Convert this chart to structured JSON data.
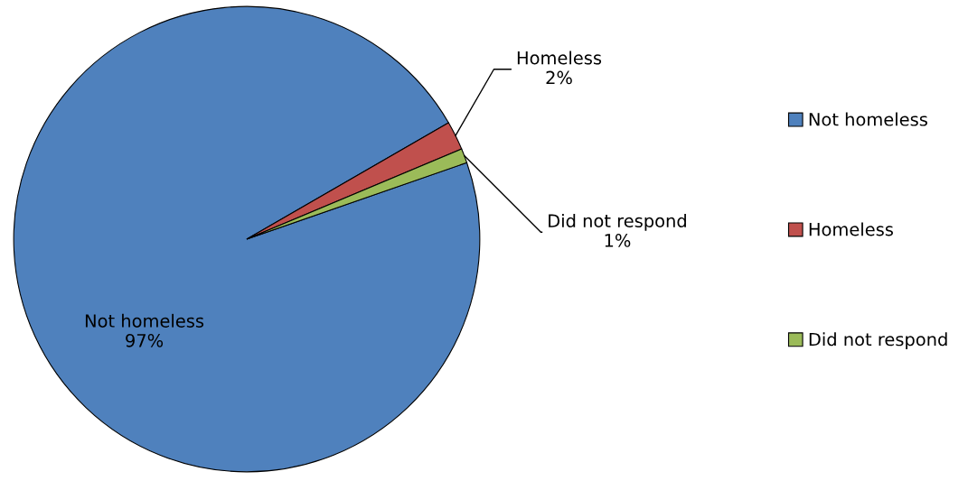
{
  "chart_data": {
    "type": "pie",
    "categories": [
      "Not homeless",
      "Homeless",
      "Did not respond"
    ],
    "values": [
      97,
      2,
      1
    ],
    "colors": [
      "#4f81bd",
      "#c0504d",
      "#9bbb59"
    ],
    "value_labels": [
      "97%",
      "2%",
      "1%"
    ],
    "legend": "right"
  }
}
